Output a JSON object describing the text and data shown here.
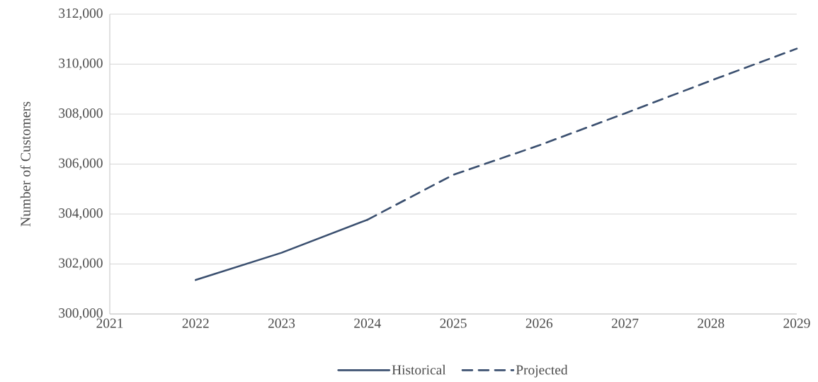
{
  "chart_data": {
    "type": "line",
    "ylabel": "Number of Customers",
    "xlim": [
      2021,
      2029
    ],
    "xticks": [
      2021,
      2022,
      2023,
      2024,
      2025,
      2026,
      2027,
      2028,
      2029
    ],
    "ylim": [
      300000,
      312000
    ],
    "yticks": [
      {
        "value": 300000,
        "label": "300,000"
      },
      {
        "value": 302000,
        "label": "302,000"
      },
      {
        "value": 304000,
        "label": "304,000"
      },
      {
        "value": 306000,
        "label": "306,000"
      },
      {
        "value": 308000,
        "label": "308,000"
      },
      {
        "value": 310000,
        "label": "310,000"
      },
      {
        "value": 312000,
        "label": "312,000"
      }
    ],
    "grid": "y",
    "legend": "bottom",
    "series": [
      {
        "name": "Historical",
        "color": "#3a4f6f",
        "line_style": "solid",
        "x": [
          2022,
          2023,
          2024
        ],
        "values": [
          301360,
          302450,
          303770
        ]
      },
      {
        "name": "Projected",
        "color": "#3a4f6f",
        "line_style": "dashed",
        "x": [
          2024,
          2025,
          2026,
          2027,
          2028,
          2029
        ],
        "values": [
          303770,
          305570,
          306750,
          308030,
          309340,
          310620
        ]
      }
    ]
  }
}
